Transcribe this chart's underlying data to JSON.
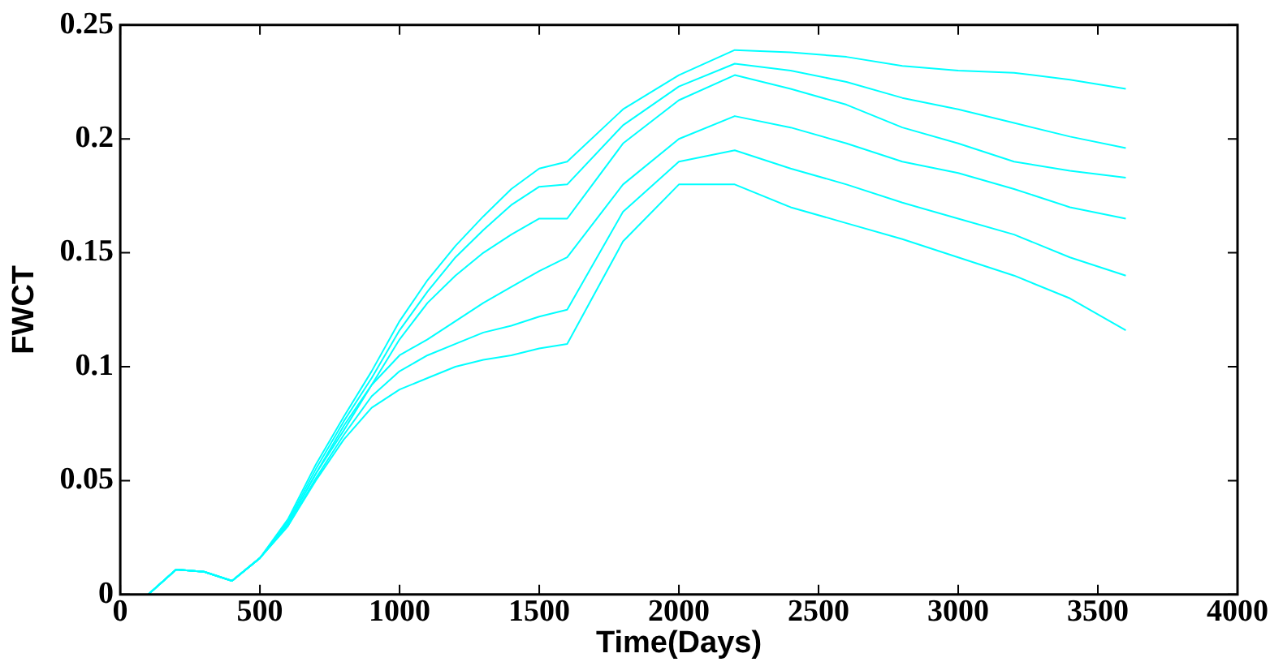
{
  "chart_data": {
    "type": "line",
    "xlabel": "Time(Days)",
    "ylabel": "FWCT",
    "x": [
      100,
      200,
      300,
      400,
      500,
      600,
      700,
      800,
      900,
      1000,
      1100,
      1200,
      1300,
      1400,
      1500,
      1600,
      1800,
      2000,
      2200,
      2400,
      2600,
      2800,
      3000,
      3200,
      3400,
      3600
    ],
    "series": [
      {
        "color": "#00ffff",
        "values": [
          0,
          0.011,
          0.01,
          0.006,
          0.016,
          0.033,
          0.057,
          0.078,
          0.098,
          0.12,
          0.138,
          0.153,
          0.166,
          0.178,
          0.187,
          0.19,
          0.213,
          0.228,
          0.239,
          0.238,
          0.236,
          0.232,
          0.23,
          0.229,
          0.226,
          0.222
        ]
      },
      {
        "color": "#00ffff",
        "values": [
          0,
          0.011,
          0.01,
          0.006,
          0.016,
          0.032,
          0.055,
          0.076,
          0.095,
          0.116,
          0.133,
          0.148,
          0.16,
          0.171,
          0.179,
          0.18,
          0.206,
          0.223,
          0.233,
          0.23,
          0.225,
          0.218,
          0.213,
          0.207,
          0.201,
          0.196
        ]
      },
      {
        "color": "#00ffff",
        "values": [
          0,
          0.011,
          0.01,
          0.006,
          0.016,
          0.031,
          0.053,
          0.074,
          0.092,
          0.112,
          0.128,
          0.14,
          0.15,
          0.158,
          0.165,
          0.165,
          0.198,
          0.217,
          0.228,
          0.222,
          0.215,
          0.205,
          0.198,
          0.19,
          0.186,
          0.183
        ]
      },
      {
        "color": "#00ffff",
        "values": [
          0,
          0.011,
          0.01,
          0.006,
          0.016,
          0.031,
          0.053,
          0.072,
          0.092,
          0.105,
          0.112,
          0.12,
          0.128,
          0.135,
          0.142,
          0.148,
          0.18,
          0.2,
          0.21,
          0.205,
          0.198,
          0.19,
          0.185,
          0.178,
          0.17,
          0.165
        ]
      },
      {
        "color": "#00ffff",
        "values": [
          0,
          0.011,
          0.01,
          0.006,
          0.016,
          0.03,
          0.051,
          0.07,
          0.087,
          0.098,
          0.105,
          0.11,
          0.115,
          0.118,
          0.122,
          0.125,
          0.168,
          0.19,
          0.195,
          0.187,
          0.18,
          0.172,
          0.165,
          0.158,
          0.148,
          0.14
        ]
      },
      {
        "color": "#00ffff",
        "values": [
          0,
          0.011,
          0.01,
          0.006,
          0.016,
          0.03,
          0.05,
          0.068,
          0.082,
          0.09,
          0.095,
          0.1,
          0.103,
          0.105,
          0.108,
          0.11,
          0.155,
          0.18,
          0.18,
          0.17,
          0.163,
          0.156,
          0.148,
          0.14,
          0.13,
          0.116
        ]
      }
    ],
    "xlim": [
      0,
      4000
    ],
    "xticks": [
      0,
      500,
      1000,
      1500,
      2000,
      2500,
      3000,
      3500,
      4000
    ],
    "ylim": [
      0,
      0.25
    ],
    "yticks": [
      0,
      0.05,
      0.1,
      0.15,
      0.2,
      0.25
    ],
    "grid": false,
    "legend": false,
    "marker": "none",
    "line_style": "solid"
  }
}
